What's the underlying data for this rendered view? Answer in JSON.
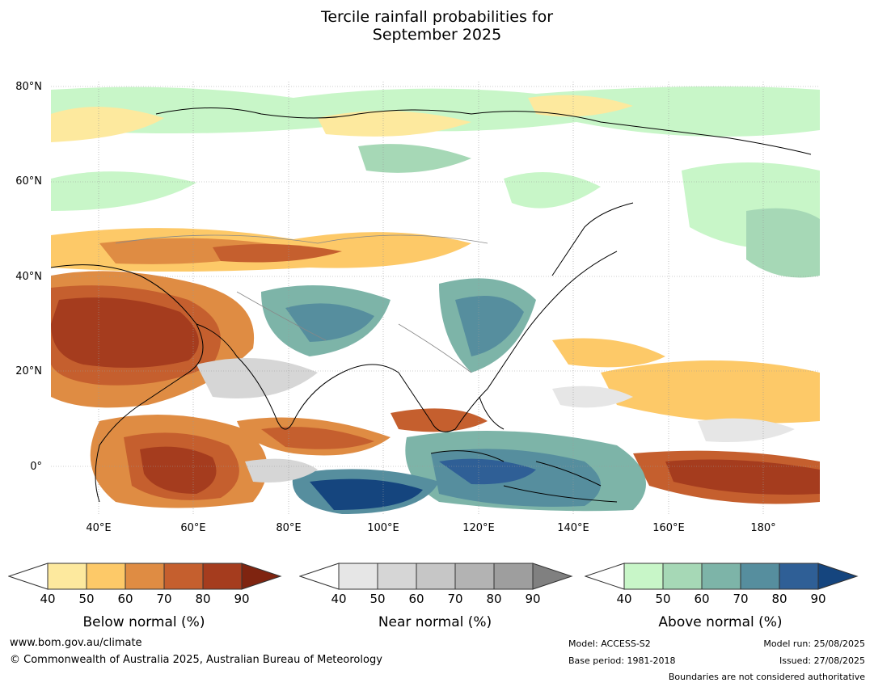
{
  "title": {
    "line1": "Tercile rainfall probabilities for",
    "line2": "September 2025"
  },
  "map": {
    "lat_labels": [
      "80°N",
      "60°N",
      "40°N",
      "20°N",
      "0°"
    ],
    "lon_labels": [
      "40°E",
      "60°E",
      "80°E",
      "100°E",
      "120°E",
      "140°E",
      "160°E",
      "180°"
    ]
  },
  "colorbars": [
    {
      "label": "Below normal (%)",
      "ticks": [
        "40",
        "50",
        "60",
        "70",
        "80",
        "90"
      ],
      "colors": [
        "#ffffff",
        "#fde99e",
        "#fdc968",
        "#df8c43",
        "#c55f2e",
        "#a53c1e",
        "#7f2410"
      ]
    },
    {
      "label": "Near normal (%)",
      "ticks": [
        "40",
        "50",
        "60",
        "70",
        "80",
        "90"
      ],
      "colors": [
        "#ffffff",
        "#e6e6e6",
        "#d6d6d6",
        "#c6c6c6",
        "#b3b3b3",
        "#9e9e9e",
        "#808080"
      ]
    },
    {
      "label": "Above normal (%)",
      "ticks": [
        "40",
        "50",
        "60",
        "70",
        "80",
        "90"
      ],
      "colors": [
        "#ffffff",
        "#c8f6c8",
        "#a6d8b6",
        "#7db4a8",
        "#568e9e",
        "#2f5f96",
        "#15457e"
      ]
    }
  ],
  "footer": {
    "website": "www.bom.gov.au/climate",
    "copyright": "© Commonwealth of Australia 2025, Australian Bureau of Meteorology",
    "model": "Model: ACCESS-S2",
    "base_period": "Base period: 1981-2018",
    "model_run": "Model run: 25/08/2025",
    "issued": "Issued: 27/08/2025",
    "disclaimer": "Boundaries are not considered authoritative"
  }
}
